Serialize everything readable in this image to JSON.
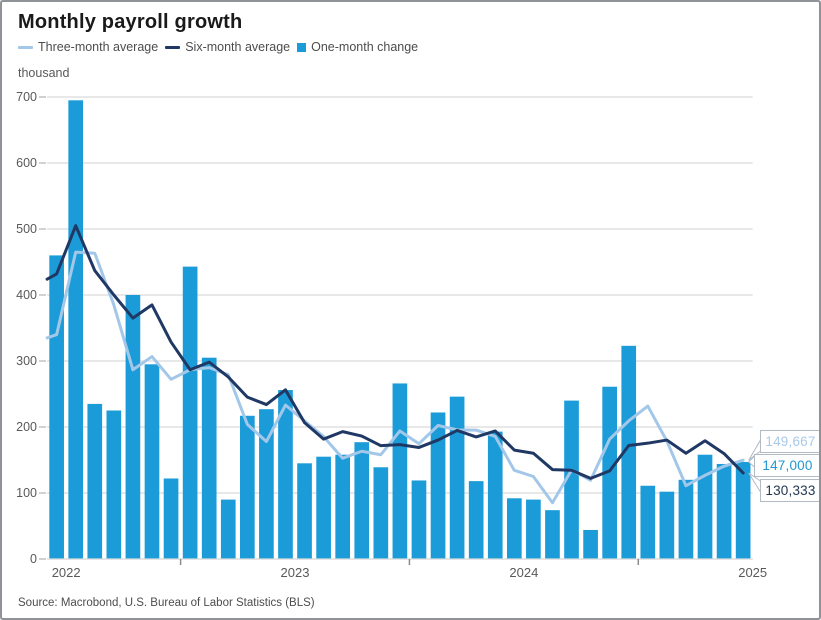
{
  "title": "Monthly payroll growth",
  "legend": {
    "items": [
      {
        "label": "Three-month average",
        "swatch": "line",
        "color": "#a3c7e9"
      },
      {
        "label": "Six-month average",
        "swatch": "line",
        "color": "#1f3864"
      },
      {
        "label": "One-month change",
        "swatch": "square",
        "color": "#1b9cd8"
      }
    ]
  },
  "y_axis": {
    "unit_label": "thousand",
    "ticks": [
      0,
      100,
      200,
      300,
      400,
      500,
      600,
      700
    ],
    "min": 0,
    "max": 700
  },
  "x_axis": {
    "year_labels": [
      "2022",
      "2023",
      "2024",
      "2025"
    ]
  },
  "callouts": [
    {
      "value": "149,667",
      "series": "three-month-average",
      "color": "#a9c9e9"
    },
    {
      "value": "147,000",
      "series": "one-month-change",
      "color": "#1f97d0"
    },
    {
      "value": "130,333",
      "series": "six-month-average",
      "color": "#23384e"
    }
  ],
  "source": "Source: Macrobond, U.S. Bureau of Labor Statistics (BLS)",
  "colors": {
    "bar": "#1b9cd8",
    "three_month_line": "#a3c7e9",
    "six_month_line": "#1f3864",
    "gridline": "#dbdbdb",
    "axis_text": "#595959",
    "tick": "#8c8c8c",
    "callout_border": "#b2bac3",
    "frame_border": "#8f9398"
  },
  "chart_data": {
    "type": "bar",
    "title": "Monthly payroll growth",
    "ylabel": "thousand",
    "ylim": [
      0,
      700
    ],
    "yticks": [
      0,
      100,
      200,
      300,
      400,
      500,
      600,
      700
    ],
    "grid": "horizontal",
    "legend_position": "top-left",
    "months": [
      "2022-06",
      "2022-07",
      "2022-08",
      "2022-09",
      "2022-10",
      "2022-11",
      "2022-12",
      "2023-01",
      "2023-02",
      "2023-03",
      "2023-04",
      "2023-05",
      "2023-06",
      "2023-07",
      "2023-08",
      "2023-09",
      "2023-10",
      "2023-11",
      "2023-12",
      "2024-01",
      "2024-02",
      "2024-03",
      "2024-04",
      "2024-05",
      "2024-06",
      "2024-07",
      "2024-08",
      "2024-09",
      "2024-10",
      "2024-11",
      "2024-12",
      "2025-01",
      "2025-02",
      "2025-03",
      "2025-04",
      "2025-05",
      "2025-06"
    ],
    "year_tick_months": [
      "2023-01",
      "2024-01",
      "2025-01"
    ],
    "series": [
      {
        "name": "One-month change",
        "type": "bar",
        "values": [
          460,
          695,
          235,
          225,
          400,
          295,
          122,
          443,
          305,
          90,
          217,
          227,
          256,
          145,
          155,
          158,
          177,
          139,
          266,
          119,
          222,
          246,
          118,
          193,
          92,
          90,
          74,
          240,
          44,
          261,
          323,
          111,
          102,
          120,
          158,
          144,
          147
        ]
      },
      {
        "name": "Three-month average",
        "type": "line",
        "values": [
          340,
          465,
          463.3,
          385,
          286.7,
          306.7,
          272.3,
          286.7,
          290,
          279.3,
          204,
          178,
          233.3,
          209.3,
          185.3,
          152.7,
          163.3,
          158,
          194,
          174.7,
          202.3,
          195.7,
          195.3,
          185.7,
          134.3,
          125,
          85.3,
          134.7,
          119.3,
          181.7,
          209.3,
          231.7,
          178.7,
          111,
          126.7,
          140.7,
          149.7
        ],
        "left_edge_value": 335
      },
      {
        "name": "Six-month average",
        "type": "line",
        "values": [
          432,
          505,
          437,
          400,
          365,
          385,
          328.7,
          286.7,
          298.3,
          275.8,
          245.3,
          234,
          256.3,
          206.7,
          181.7,
          193,
          186.3,
          171.7,
          173.3,
          169,
          180.2,
          194.8,
          185,
          194,
          165,
          160.2,
          135.5,
          134.5,
          122.2,
          133.5,
          172,
          175.5,
          180.2,
          160.2,
          179.2,
          159.7,
          130.3
        ],
        "left_edge_value": 424
      }
    ],
    "end_labels": {
      "three_month_average": "149,667",
      "one_month_change": "147,000",
      "six_month_average": "130,333"
    }
  }
}
